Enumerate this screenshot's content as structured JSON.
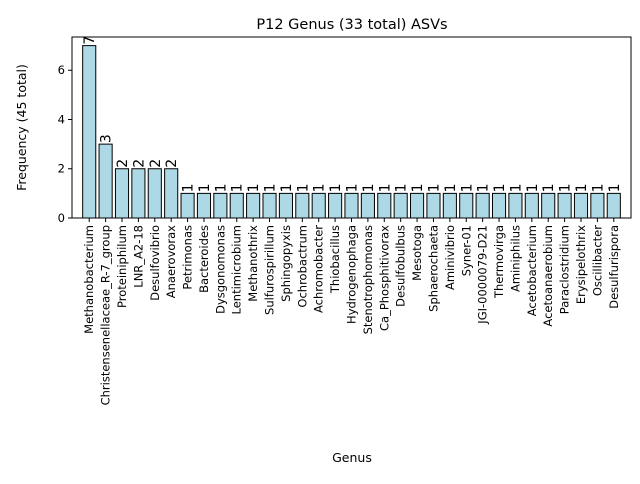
{
  "chart_data": {
    "type": "bar",
    "title": "P12 Genus (33 total) ASVs",
    "xlabel": "Genus",
    "ylabel": "Frequency (45 total)",
    "ylim": [
      0,
      7.35
    ],
    "yticks": [
      0,
      2,
      4,
      6
    ],
    "grid": false,
    "legend": "none",
    "bar_color": "#add8e6",
    "edge_color": "#000000",
    "categories": [
      "Methanobacterium",
      "Christensenellaceae_R-7_group",
      "Proteiniphilum",
      "LNR_A2-18",
      "Desulfovibrio",
      "Anaerovorax",
      "Petrimonas",
      "Bacteroides",
      "Dysgonomonas",
      "Lentimicrobium",
      "Methanothrix",
      "Sulfurospirillum",
      "Sphingopyxis",
      "Ochrobactrum",
      "Achromobacter",
      "Thiobacillus",
      "Hydrogenophaga",
      "Stenotrophomonas",
      "Ca_Phosphitivorax",
      "Desulfobulbus",
      "Mesotoga",
      "Sphaerochaeta",
      "Aminivibrio",
      "Syner-01",
      "JGI-0000079-D21",
      "Thermovirga",
      "Aminiphilus",
      "Acetobacterium",
      "Acetoanaerobium",
      "Paraclostridium",
      "Erysipelothrix",
      "Oscillibacter",
      "Desulfurispora"
    ],
    "values": [
      7,
      3,
      2,
      2,
      2,
      2,
      1,
      1,
      1,
      1,
      1,
      1,
      1,
      1,
      1,
      1,
      1,
      1,
      1,
      1,
      1,
      1,
      1,
      1,
      1,
      1,
      1,
      1,
      1,
      1,
      1,
      1,
      1
    ]
  }
}
